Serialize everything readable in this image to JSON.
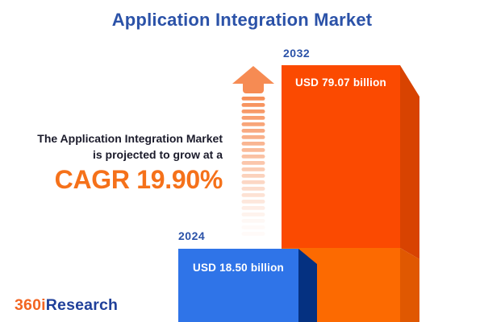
{
  "title": "Application Integration Market",
  "description": {
    "line1": "The Application Integration Market",
    "line2": "is projected to grow at a",
    "cagr": "CAGR 19.90%"
  },
  "logo": {
    "prefix": "360i",
    "suffix": "Research"
  },
  "chart_data": {
    "type": "bar",
    "title": "Application Integration Market",
    "categories": [
      "2024",
      "2032"
    ],
    "values": [
      18.5,
      79.07
    ],
    "unit": "USD billion",
    "value_labels": [
      "USD 18.50 billion",
      "USD 79.07 billion"
    ],
    "cagr_percent": 19.9,
    "legend": "none",
    "grid": "off",
    "bar_style": "3d-extruded",
    "orientation": "vertical"
  },
  "colors": {
    "title_blue": "#2B52A8",
    "year_label_blue": "#2B52A8",
    "text_dark": "#1B1B2B",
    "cagr_orange": "#F5711A",
    "bar2032_face_top": "#FB4A01",
    "bar2032_face_bottom": "#FC6A01",
    "bar2032_side_top": "#D84301",
    "bar2032_side_bottom": "#E05801",
    "bar2024_face": "#2F74E8",
    "bar2024_side": "#053181",
    "arrow_orange": "#F68B53",
    "logo_orange": "#F26522",
    "logo_blue": "#20409A",
    "background": "#FFFFFF"
  }
}
